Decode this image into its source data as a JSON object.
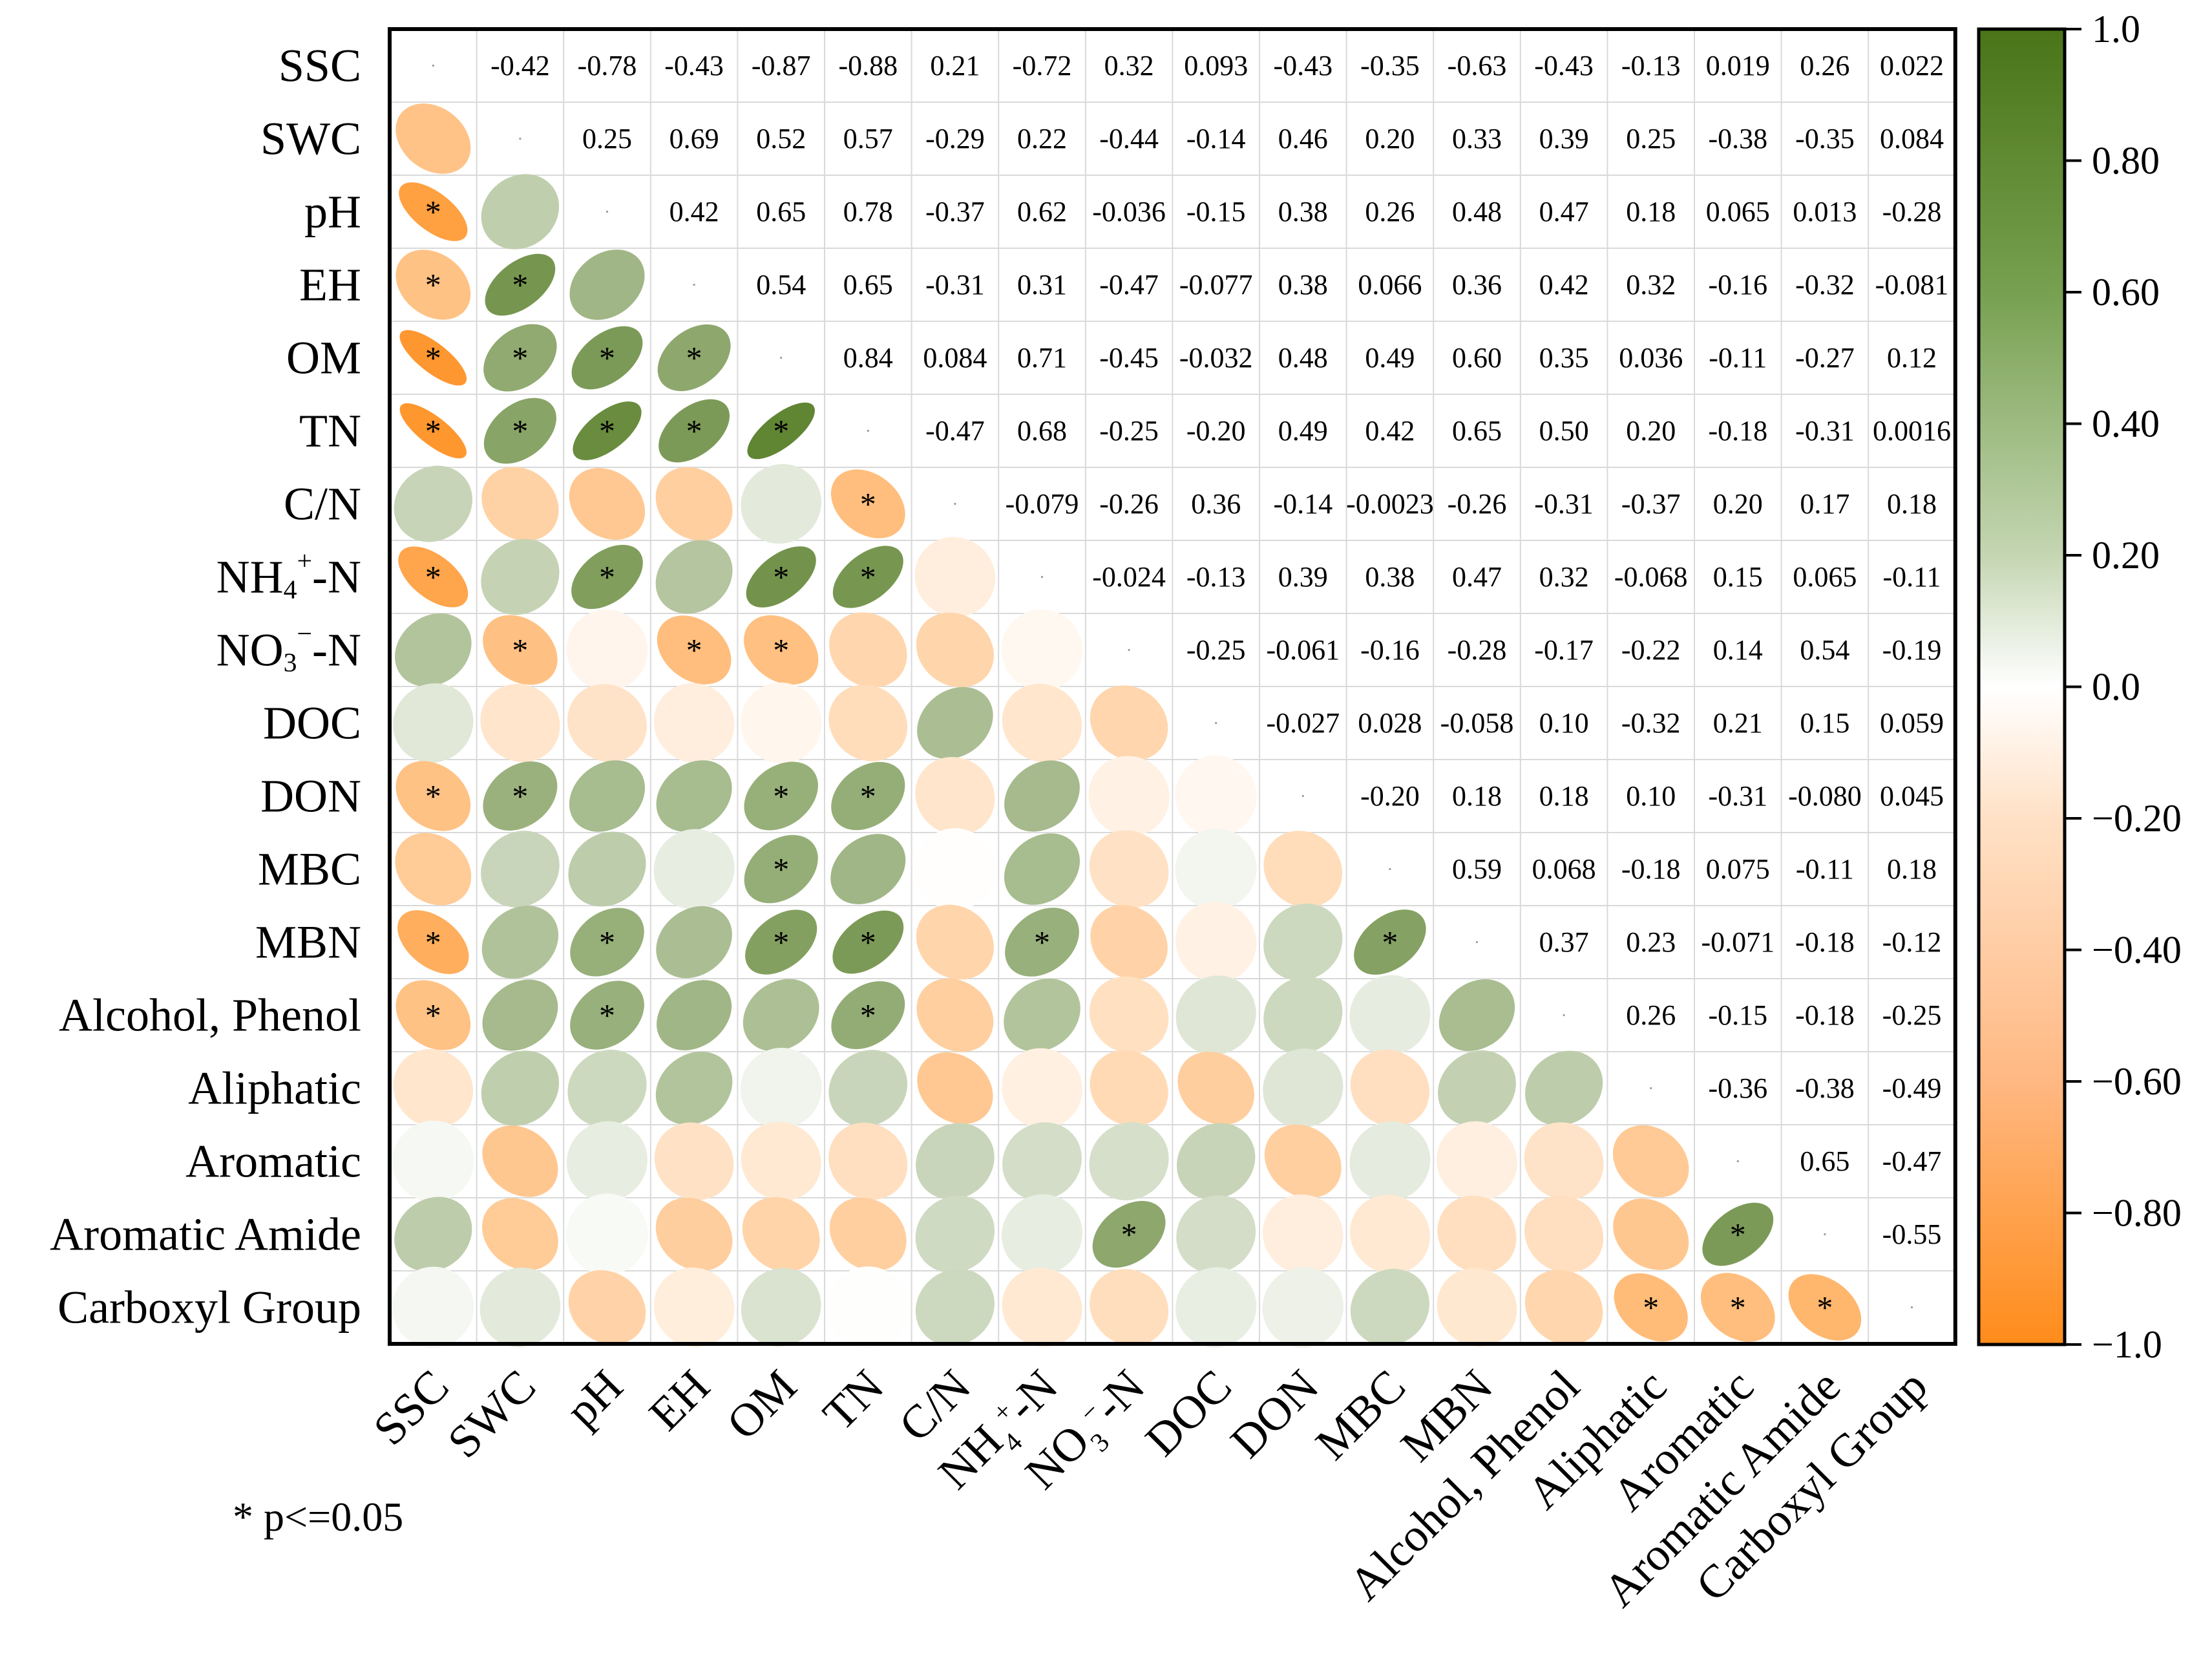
{
  "chart_data": {
    "type": "heatmap",
    "subtype": "correlation-matrix",
    "variables": [
      "SSC",
      "SWC",
      "pH",
      "EH",
      "OM",
      "TN",
      "C/N",
      "NH4+-N",
      "NO3−-N",
      "DOC",
      "DON",
      "MBC",
      "MBN",
      "Alcohol, Phenol",
      "Aliphatic",
      "Aromatic",
      "Aromatic Amide",
      "Carboxyl Group"
    ],
    "row_labels": [
      {
        "text": "SSC"
      },
      {
        "text": "SWC"
      },
      {
        "text": "pH"
      },
      {
        "text": "EH"
      },
      {
        "text": "OM"
      },
      {
        "text": "TN"
      },
      {
        "text": "C/N"
      },
      {
        "text": "NH",
        "sub": "4",
        "sup": "+",
        "tail": "-N"
      },
      {
        "text": "NO",
        "sub": "3",
        "sup": "−",
        "tail": "-N"
      },
      {
        "text": "DOC"
      },
      {
        "text": "DON"
      },
      {
        "text": "MBC"
      },
      {
        "text": "MBN"
      },
      {
        "text": "Alcohol, Phenol"
      },
      {
        "text": "Aliphatic"
      },
      {
        "text": "Aromatic"
      },
      {
        "text": "Aromatic Amide"
      },
      {
        "text": "Carboxyl Group"
      }
    ],
    "col_labels": [
      {
        "text": "SSC"
      },
      {
        "text": "SWC"
      },
      {
        "text": "pH"
      },
      {
        "text": "EH"
      },
      {
        "text": "OM"
      },
      {
        "text": "TN"
      },
      {
        "text": "C/N"
      },
      {
        "text": "NH",
        "sub": "4",
        "sup": "+",
        "tail": "-N"
      },
      {
        "text": "NO",
        "sub": "3",
        "sup": "−",
        "tail": "-N"
      },
      {
        "text": "DOC"
      },
      {
        "text": "DON"
      },
      {
        "text": "MBC"
      },
      {
        "text": "MBN"
      },
      {
        "text": "Alcohol, Phenol"
      },
      {
        "text": "Aliphatic"
      },
      {
        "text": "Aromatic"
      },
      {
        "text": "Aromatic Amide"
      },
      {
        "text": "Carboxyl Group"
      }
    ],
    "upper_labels": [
      [
        "-0.42",
        "-0.78",
        "-0.43",
        "-0.87",
        "-0.88",
        "0.21",
        "-0.72",
        "0.32",
        "0.093",
        "-0.43",
        "-0.35",
        "-0.63",
        "-0.43",
        "-0.13",
        "0.019",
        "0.26",
        "0.022"
      ],
      [
        "0.25",
        "0.69",
        "0.52",
        "0.57",
        "-0.29",
        "0.22",
        "-0.44",
        "-0.14",
        "0.46",
        "0.20",
        "0.33",
        "0.39",
        "0.25",
        "-0.38",
        "-0.35",
        "0.084"
      ],
      [
        "0.42",
        "0.65",
        "0.78",
        "-0.37",
        "0.62",
        "-0.036",
        "-0.15",
        "0.38",
        "0.26",
        "0.48",
        "0.47",
        "0.18",
        "0.065",
        "0.013",
        "-0.28"
      ],
      [
        "0.54",
        "0.65",
        "-0.31",
        "0.31",
        "-0.47",
        "-0.077",
        "0.38",
        "0.066",
        "0.36",
        "0.42",
        "0.32",
        "-0.16",
        "-0.32",
        "-0.081"
      ],
      [
        "0.84",
        "0.084",
        "0.71",
        "-0.45",
        "-0.032",
        "0.48",
        "0.49",
        "0.60",
        "0.35",
        "0.036",
        "-0.11",
        "-0.27",
        "0.12"
      ],
      [
        "-0.47",
        "0.68",
        "-0.25",
        "-0.20",
        "0.49",
        "0.42",
        "0.65",
        "0.50",
        "0.20",
        "-0.18",
        "-0.31",
        "0.0016"
      ],
      [
        "-0.079",
        "-0.26",
        "0.36",
        "-0.14",
        "-0.0023",
        "-0.26",
        "-0.31",
        "-0.37",
        "0.20",
        "0.17",
        "0.18"
      ],
      [
        "-0.024",
        "-0.13",
        "0.39",
        "0.38",
        "0.47",
        "0.32",
        "-0.068",
        "0.15",
        "0.065",
        "-0.11"
      ],
      [
        "-0.25",
        "-0.061",
        "-0.16",
        "-0.28",
        "-0.17",
        "-0.22",
        "0.14",
        "0.54",
        "-0.19"
      ],
      [
        "-0.027",
        "0.028",
        "-0.058",
        "0.10",
        "-0.32",
        "0.21",
        "0.15",
        "0.059"
      ],
      [
        "-0.20",
        "0.18",
        "0.18",
        "0.10",
        "-0.31",
        "-0.080",
        "0.045"
      ],
      [
        "0.59",
        "0.068",
        "-0.18",
        "0.075",
        "-0.11",
        "0.18"
      ],
      [
        "0.37",
        "0.23",
        "-0.071",
        "-0.18",
        "-0.12"
      ],
      [
        "0.26",
        "-0.15",
        "-0.18",
        "-0.25"
      ],
      [
        "-0.36",
        "-0.38",
        "-0.49"
      ],
      [
        "0.65",
        "-0.47"
      ],
      [
        "-0.55"
      ]
    ],
    "significant_pairs": [
      [
        2,
        0
      ],
      [
        3,
        0
      ],
      [
        3,
        1
      ],
      [
        4,
        0
      ],
      [
        4,
        1
      ],
      [
        4,
        2
      ],
      [
        4,
        3
      ],
      [
        5,
        0
      ],
      [
        5,
        1
      ],
      [
        5,
        2
      ],
      [
        5,
        3
      ],
      [
        5,
        4
      ],
      [
        6,
        5
      ],
      [
        7,
        0
      ],
      [
        7,
        2
      ],
      [
        7,
        4
      ],
      [
        7,
        5
      ],
      [
        8,
        1
      ],
      [
        8,
        3
      ],
      [
        8,
        4
      ],
      [
        10,
        0
      ],
      [
        10,
        1
      ],
      [
        10,
        4
      ],
      [
        10,
        5
      ],
      [
        11,
        4
      ],
      [
        12,
        0
      ],
      [
        12,
        2
      ],
      [
        12,
        4
      ],
      [
        12,
        5
      ],
      [
        12,
        7
      ],
      [
        12,
        11
      ],
      [
        13,
        0
      ],
      [
        13,
        2
      ],
      [
        13,
        5
      ],
      [
        16,
        8
      ],
      [
        16,
        15
      ],
      [
        17,
        14
      ],
      [
        17,
        15
      ],
      [
        17,
        16
      ]
    ],
    "significance_marker": "*",
    "note": "* p<=0.05",
    "colorbar": {
      "min": -1.0,
      "max": 1.0,
      "ticks": [
        "1.0",
        "0.80",
        "0.60",
        "0.40",
        "0.20",
        "0.0",
        "−0.20",
        "−0.40",
        "−0.60",
        "−0.80",
        "−1.0"
      ],
      "colors": {
        "negative": "#ff8c1a",
        "zero": "#ffffff",
        "positive": "#4a7417"
      }
    }
  }
}
